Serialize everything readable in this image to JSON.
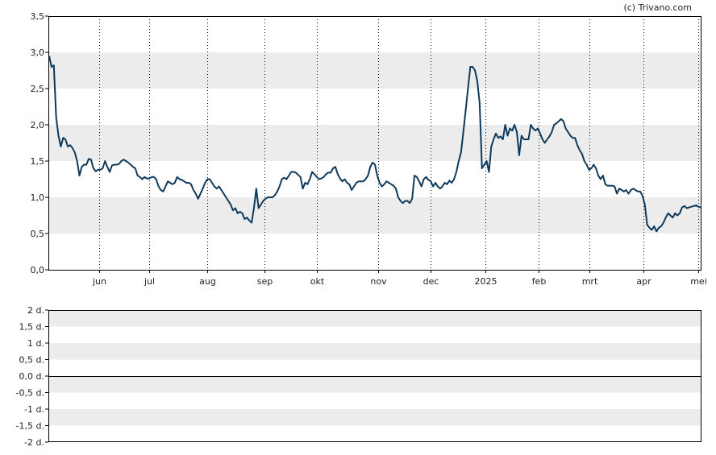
{
  "credit": "(c) Trivano.com",
  "colors": {
    "line": "#0d3a5c",
    "band": "#ececec",
    "frame": "#000000",
    "background": "#ffffff"
  },
  "chart_data": [
    {
      "type": "line",
      "x_tick_labels": [
        "jun",
        "jul",
        "aug",
        "sep",
        "okt",
        "nov",
        "dec",
        "2025",
        "feb",
        "mrt",
        "apr",
        "mei"
      ],
      "y_tick_labels": [
        "0,0",
        "0,5",
        "1,0",
        "1,5",
        "2,0",
        "2,5",
        "3,0",
        "3,5"
      ],
      "ylim": [
        0,
        3.5
      ],
      "grid": "horizontal bands + dotted vertical month lines",
      "series": [
        {
          "values": [
            2.95,
            2.8,
            2.82,
            2.1,
            1.85,
            1.7,
            1.82,
            1.8,
            1.7,
            1.72,
            1.68,
            1.62,
            1.5,
            1.3,
            1.42,
            1.45,
            1.45,
            1.53,
            1.52,
            1.4,
            1.36,
            1.38,
            1.38,
            1.4,
            1.5,
            1.42,
            1.35,
            1.44,
            1.45,
            1.45,
            1.46,
            1.5,
            1.52,
            1.5,
            1.48,
            1.45,
            1.42,
            1.4,
            1.3,
            1.28,
            1.25,
            1.28,
            1.26,
            1.26,
            1.28,
            1.28,
            1.25,
            1.15,
            1.1,
            1.08,
            1.15,
            1.22,
            1.2,
            1.18,
            1.2,
            1.28,
            1.25,
            1.24,
            1.22,
            1.2,
            1.2,
            1.18,
            1.1,
            1.05,
            0.98,
            1.05,
            1.12,
            1.2,
            1.25,
            1.25,
            1.2,
            1.15,
            1.12,
            1.15,
            1.1,
            1.05,
            1.0,
            0.95,
            0.9,
            0.82,
            0.85,
            0.78,
            0.8,
            0.78,
            0.7,
            0.72,
            0.68,
            0.65,
            0.85,
            1.12,
            0.85,
            0.9,
            0.95,
            0.98,
            1.0,
            1.0,
            1.0,
            1.03,
            1.08,
            1.15,
            1.25,
            1.27,
            1.25,
            1.3,
            1.35,
            1.35,
            1.34,
            1.31,
            1.28,
            1.12,
            1.2,
            1.18,
            1.25,
            1.35,
            1.32,
            1.28,
            1.25,
            1.26,
            1.28,
            1.32,
            1.34,
            1.34,
            1.4,
            1.42,
            1.32,
            1.26,
            1.22,
            1.25,
            1.2,
            1.18,
            1.1,
            1.15,
            1.2,
            1.22,
            1.22,
            1.22,
            1.25,
            1.3,
            1.42,
            1.48,
            1.45,
            1.3,
            1.2,
            1.15,
            1.18,
            1.22,
            1.2,
            1.18,
            1.16,
            1.12,
            1.0,
            0.95,
            0.92,
            0.95,
            0.95,
            0.92,
            0.98,
            1.3,
            1.28,
            1.22,
            1.15,
            1.25,
            1.28,
            1.24,
            1.22,
            1.15,
            1.2,
            1.15,
            1.12,
            1.15,
            1.2,
            1.18,
            1.23,
            1.2,
            1.25,
            1.35,
            1.5,
            1.62,
            1.9,
            2.2,
            2.5,
            2.8,
            2.8,
            2.75,
            2.6,
            2.3,
            1.4,
            1.45,
            1.5,
            1.35,
            1.7,
            1.8,
            1.88,
            1.82,
            1.84,
            1.8,
            2.0,
            1.85,
            1.95,
            1.92,
            2.0,
            1.9,
            1.58,
            1.85,
            1.8,
            1.8,
            1.8,
            2.0,
            1.95,
            1.92,
            1.95,
            1.88,
            1.8,
            1.75,
            1.8,
            1.84,
            1.9,
            2.0,
            2.02,
            2.05,
            2.08,
            2.05,
            1.95,
            1.9,
            1.85,
            1.82,
            1.82,
            1.72,
            1.65,
            1.6,
            1.5,
            1.45,
            1.38,
            1.4,
            1.45,
            1.4,
            1.3,
            1.25,
            1.3,
            1.18,
            1.16,
            1.16,
            1.16,
            1.15,
            1.05,
            1.12,
            1.1,
            1.08,
            1.1,
            1.05,
            1.1,
            1.12,
            1.1,
            1.08,
            1.08,
            1.02,
            0.9,
            0.62,
            0.58,
            0.55,
            0.6,
            0.53,
            0.58,
            0.6,
            0.65,
            0.72,
            0.78,
            0.75,
            0.72,
            0.78,
            0.75,
            0.78,
            0.86,
            0.88,
            0.85,
            0.86,
            0.87,
            0.88,
            0.89,
            0.87,
            0.86
          ]
        }
      ]
    },
    {
      "type": "line",
      "y_tick_labels": [
        "2 d.",
        "1,5 d.",
        "1 d.",
        "0,5 d.",
        "0,0 d.",
        "-0,5 d.",
        "-1 d.",
        "-1,5 d.",
        "-2 d."
      ],
      "ylim": [
        -2,
        2
      ],
      "grid": "horizontal bands, zero line",
      "series": []
    }
  ]
}
